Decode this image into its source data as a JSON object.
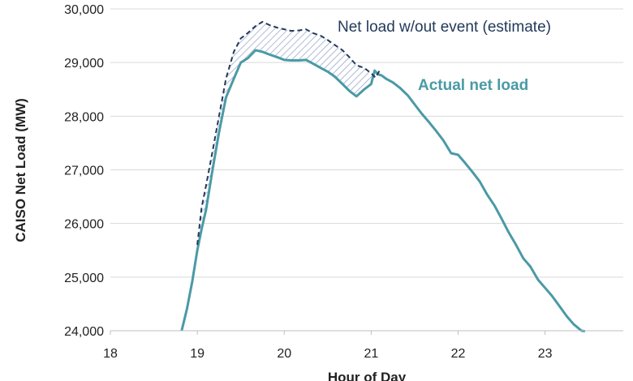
{
  "chart_data": {
    "type": "line",
    "xlabel": "Hour of Day",
    "ylabel": "CAISO Net Load (MW)",
    "xlim": [
      18,
      23.9
    ],
    "ylim": [
      24000,
      30000
    ],
    "x_ticks": [
      "18",
      "19",
      "20",
      "21",
      "22",
      "23"
    ],
    "y_ticks": [
      "24,000",
      "25,000",
      "26,000",
      "27,000",
      "28,000",
      "29,000",
      "30,000"
    ],
    "grid": "horizontal",
    "shaded_region": "between estimate and actual, 19.0 to 21.1 (diagonal hatch)",
    "series": [
      {
        "name": "Actual net load",
        "style": "solid",
        "color": "#4a9aa5",
        "x": [
          18.82,
          18.88,
          18.94,
          19.0,
          19.05,
          19.1,
          19.17,
          19.25,
          19.33,
          19.42,
          19.5,
          19.58,
          19.67,
          19.75,
          19.83,
          19.92,
          20.0,
          20.08,
          20.17,
          20.25,
          20.33,
          20.42,
          20.5,
          20.58,
          20.67,
          20.75,
          20.83,
          20.92,
          21.0,
          21.04,
          21.08,
          21.12,
          21.17,
          21.25,
          21.33,
          21.42,
          21.5,
          21.58,
          21.67,
          21.75,
          21.83,
          21.92,
          22.0,
          22.08,
          22.17,
          22.25,
          22.33,
          22.42,
          22.5,
          22.58,
          22.67,
          22.75,
          22.83,
          22.92,
          23.0,
          23.08,
          23.17,
          23.25,
          23.33,
          23.42,
          23.46
        ],
        "y": [
          24000,
          24400,
          24900,
          25500,
          25900,
          26250,
          26950,
          27700,
          28350,
          28700,
          29000,
          29080,
          29230,
          29200,
          29150,
          29100,
          29050,
          29040,
          29040,
          29050,
          28980,
          28900,
          28830,
          28740,
          28600,
          28470,
          28370,
          28500,
          28600,
          28850,
          28780,
          28760,
          28700,
          28630,
          28530,
          28390,
          28220,
          28050,
          27880,
          27720,
          27550,
          27310,
          27280,
          27130,
          26950,
          26780,
          26550,
          26330,
          26090,
          25840,
          25590,
          25350,
          25200,
          24950,
          24800,
          24650,
          24450,
          24270,
          24120,
          24000,
          23990
        ]
      },
      {
        "name": "Net load w/out event (estimate)",
        "style": "dashed",
        "color": "#23395b",
        "x": [
          19.0,
          19.05,
          19.1,
          19.17,
          19.25,
          19.33,
          19.42,
          19.5,
          19.58,
          19.67,
          19.75,
          19.83,
          19.92,
          20.0,
          20.08,
          20.17,
          20.25,
          20.33,
          20.42,
          20.5,
          20.58,
          20.67,
          20.75,
          20.83,
          20.92,
          21.0,
          21.05,
          21.1
        ],
        "y": [
          25600,
          26300,
          26700,
          27300,
          28000,
          28700,
          29200,
          29450,
          29550,
          29680,
          29760,
          29700,
          29650,
          29620,
          29590,
          29600,
          29620,
          29550,
          29500,
          29420,
          29330,
          29230,
          29100,
          28950,
          28900,
          28800,
          28720,
          28860
        ]
      }
    ],
    "annotations": [
      {
        "text": "Net load w/out event (estimate)",
        "color": "#23395b"
      },
      {
        "text": "Actual net load",
        "color": "#4a9aa5"
      }
    ]
  }
}
